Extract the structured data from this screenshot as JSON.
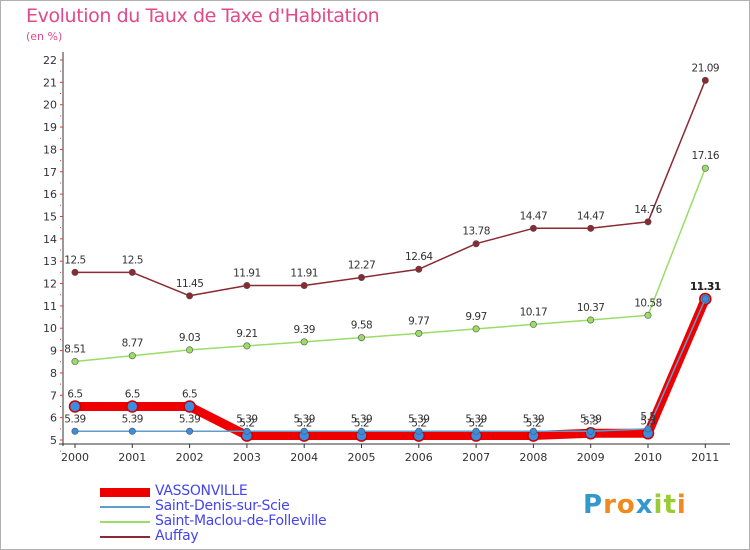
{
  "title": "Evolution du Taux de Taxe d'Habitation",
  "unit": "(en %)",
  "logo": {
    "text": "Proxiti",
    "letters": [
      "P",
      "r",
      "o",
      "x",
      "i",
      "t",
      "i"
    ],
    "letter_colors": [
      "#3399cc",
      "#f08a1e",
      "#f08a1e",
      "#3399cc",
      "#99cc33",
      "#99cc33",
      "#f08a1e"
    ]
  },
  "chart_data": {
    "type": "line",
    "title": "Evolution du Taux de Taxe d'Habitation",
    "subtitle": "(en %)",
    "xlabel": "",
    "ylabel": "",
    "x": [
      "2000",
      "2001",
      "2002",
      "2003",
      "2004",
      "2005",
      "2006",
      "2007",
      "2008",
      "2009",
      "2010",
      "2011"
    ],
    "ylim": [
      5,
      22
    ],
    "yticks": [
      "5",
      "6",
      "7",
      "8",
      "9",
      "10",
      "11",
      "12",
      "13",
      "14",
      "15",
      "16",
      "17",
      "18",
      "19",
      "20",
      "21",
      "22"
    ],
    "grid": false,
    "legend_position": "bottom-left",
    "series": [
      {
        "name": "VASSONVILLE",
        "color": "#ee0000",
        "values": [
          6.5,
          6.5,
          6.5,
          5.2,
          5.2,
          5.2,
          5.2,
          5.2,
          5.2,
          5.3,
          5.3,
          11.31
        ],
        "labels": [
          "6.5",
          "6.5",
          "6.5",
          "5.2",
          "5.2",
          "5.2",
          "5.2",
          "5.2",
          "5.2",
          "5.3",
          "5.3",
          "11.31"
        ]
      },
      {
        "name": "Saint-Denis-sur-Scie",
        "color": "#5f9ecb",
        "values": [
          5.39,
          5.39,
          5.39,
          5.39,
          5.39,
          5.39,
          5.39,
          5.39,
          5.39,
          5.39,
          5.5,
          11.31
        ],
        "labels": [
          "5.39",
          "5.39",
          "5.39",
          "5.39",
          "5.39",
          "5.39",
          "5.39",
          "5.39",
          "5.39",
          "5.39",
          "5.5",
          "11.31"
        ]
      },
      {
        "name": "Saint-Maclou-de-Folleville",
        "color": "#99dd66",
        "values": [
          8.51,
          8.77,
          9.03,
          9.21,
          9.39,
          9.58,
          9.77,
          9.97,
          10.17,
          10.37,
          10.58,
          17.16
        ],
        "labels": [
          "8.51",
          "8.77",
          "9.03",
          "9.21",
          "9.39",
          "9.58",
          "9.77",
          "9.97",
          "10.17",
          "10.37",
          "10.58",
          "17.16"
        ]
      },
      {
        "name": "Auffay",
        "color": "#8b2a32",
        "values": [
          12.5,
          12.5,
          11.45,
          11.91,
          11.91,
          12.27,
          12.64,
          13.78,
          14.47,
          14.47,
          14.76,
          21.09
        ],
        "labels": [
          "12.5",
          "12.5",
          "11.45",
          "11.91",
          "11.91",
          "12.27",
          "12.64",
          "13.78",
          "14.47",
          "14.47",
          "14.76",
          "21.09"
        ]
      }
    ]
  }
}
